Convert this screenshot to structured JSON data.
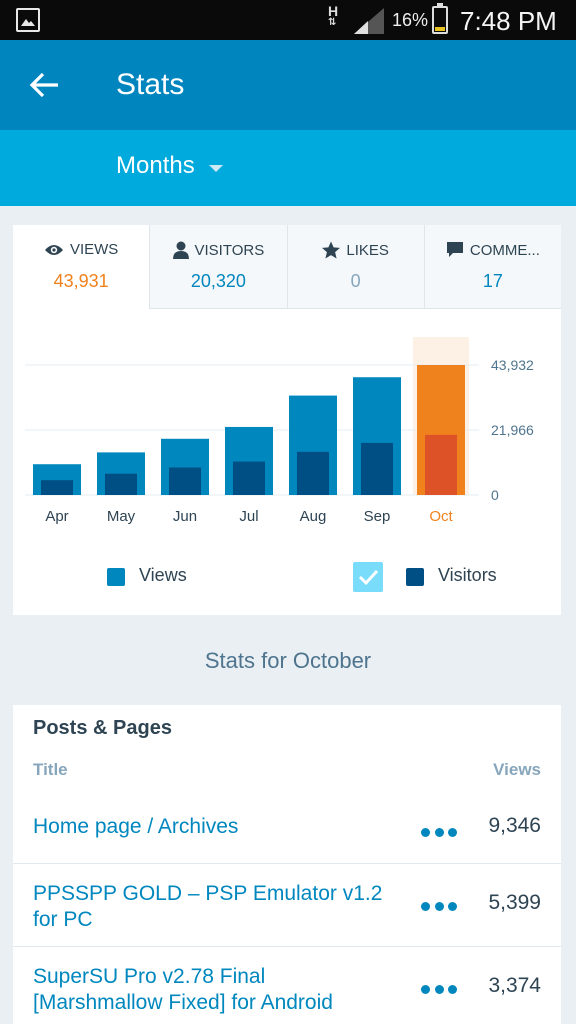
{
  "status_bar": {
    "network": "H",
    "battery": "16%",
    "time": "7:48 PM"
  },
  "app_bar": {
    "title": "Stats"
  },
  "filter": {
    "period": "Months"
  },
  "tabs": [
    {
      "label": "VIEWS",
      "value": "43,931",
      "icon": "eye-icon"
    },
    {
      "label": "VISITORS",
      "value": "20,320",
      "icon": "person-icon"
    },
    {
      "label": "LIKES",
      "value": "0",
      "icon": "star-icon"
    },
    {
      "label": "COMME...",
      "value": "17",
      "icon": "comment-icon"
    }
  ],
  "chart_data": {
    "type": "bar",
    "categories": [
      "Apr",
      "May",
      "Jun",
      "Jul",
      "Aug",
      "Sep",
      "Oct"
    ],
    "series": [
      {
        "name": "Views",
        "values": [
          10400,
          14400,
          19000,
          23000,
          33600,
          39800,
          43931
        ]
      },
      {
        "name": "Visitors",
        "values": [
          5000,
          7200,
          9300,
          11300,
          14600,
          17600,
          20320
        ]
      }
    ],
    "y_ticks": [
      "43,932",
      "21,966",
      "0"
    ],
    "ylim": [
      0,
      43932
    ],
    "highlight_category": "Oct",
    "colors": {
      "views": "#0087be",
      "visitors": "#004f84",
      "views_highlight": "#f0821e",
      "visitors_highlight": "#dd5226",
      "highlight_bg": "#fdf1e6"
    }
  },
  "legend": {
    "views": "Views",
    "visitors": "Visitors"
  },
  "section_title": "Stats for October",
  "posts": {
    "heading": "Posts & Pages",
    "col_title": "Title",
    "col_views": "Views",
    "rows": [
      {
        "title": "Home page / Archives",
        "views": "9,346"
      },
      {
        "title": "PPSSPP GOLD – PSP Emulator v1.2 for PC",
        "views": "5,399"
      },
      {
        "title": "SuperSU Pro v2.78 Final [Marshmallow Fixed] for Android",
        "views": "3,374"
      }
    ]
  }
}
